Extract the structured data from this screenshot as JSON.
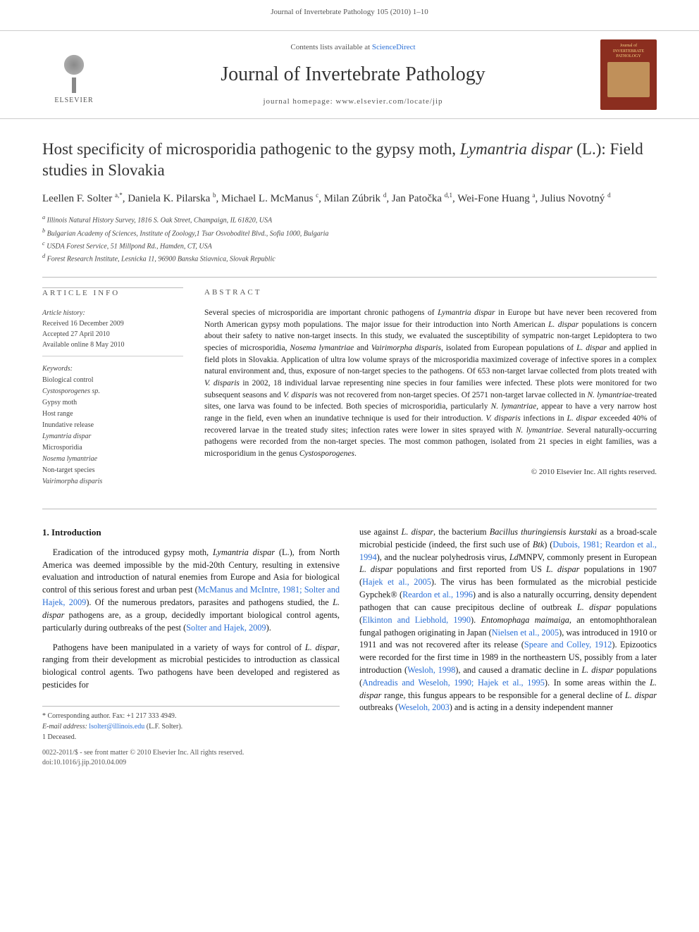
{
  "running_head": "Journal of Invertebrate Pathology 105 (2010) 1–10",
  "masthead": {
    "publisher_label": "ELSEVIER",
    "contents_prefix": "Contents lists available at ",
    "contents_link": "ScienceDirect",
    "journal_name": "Journal of Invertebrate Pathology",
    "homepage_line": "journal homepage: www.elsevier.com/locate/jip",
    "cover_title_1": "Journal of",
    "cover_title_2": "INVERTEBRATE",
    "cover_title_3": "PATHOLOGY"
  },
  "title_part1": "Host specificity of microsporidia pathogenic to the gypsy moth, ",
  "title_italic": "Lymantria dispar",
  "title_part2": " (L.): Field studies in Slovakia",
  "authors_html": "Leellen F. Solter <sup>a,*</sup>, Daniela K. Pilarska <sup>b</sup>, Michael L. McManus <sup>c</sup>, Milan Zúbrik <sup>d</sup>, Jan Patočka <sup>d,1</sup>, Wei-Fone Huang <sup>a</sup>, Julius Novotný <sup>d</sup>",
  "affiliations": [
    "a Illinois Natural History Survey, 1816 S. Oak Street, Champaign, IL 61820, USA",
    "b Bulgarian Academy of Sciences, Institute of Zoology,1 Tsar Osvoboditel Blvd., Sofia 1000, Bulgaria",
    "c USDA Forest Service, 51 Millpond Rd., Hamden, CT, USA",
    "d Forest Research Institute, Lesnicka 11, 96900 Banska Stiavnica, Slovak Republic"
  ],
  "info": {
    "section_a": "ARTICLE INFO",
    "history_label": "Article history:",
    "received": "Received 16 December 2009",
    "accepted": "Accepted 27 April 2010",
    "online": "Available online 8 May 2010",
    "keywords_label": "Keywords:",
    "keywords": [
      {
        "t": "Biological control",
        "i": false
      },
      {
        "t": "Cystosporogenes sp.",
        "i": true
      },
      {
        "t": "Gypsy moth",
        "i": false
      },
      {
        "t": "Host range",
        "i": false
      },
      {
        "t": "Inundative release",
        "i": false
      },
      {
        "t": "Lymantria dispar",
        "i": true
      },
      {
        "t": "Microsporidia",
        "i": false
      },
      {
        "t": "Nosema lymantriae",
        "i": true
      },
      {
        "t": "Non-target species",
        "i": false
      },
      {
        "t": "Vairimorpha disparis",
        "i": true
      }
    ]
  },
  "abstract": {
    "section_a": "ABSTRACT",
    "text": "Several species of microsporidia are important chronic pathogens of Lymantria dispar in Europe but have never been recovered from North American gypsy moth populations. The major issue for their introduction into North American L. dispar populations is concern about their safety to native non-target insects. In this study, we evaluated the susceptibility of sympatric non-target Lepidoptera to two species of microsporidia, Nosema lymantriae and Vairimorpha disparis, isolated from European populations of L. dispar and applied in field plots in Slovakia. Application of ultra low volume sprays of the microsporidia maximized coverage of infective spores in a complex natural environment and, thus, exposure of non-target species to the pathogens. Of 653 non-target larvae collected from plots treated with V. disparis in 2002, 18 individual larvae representing nine species in four families were infected. These plots were monitored for two subsequent seasons and V. disparis was not recovered from non-target species. Of 2571 non-target larvae collected in N. lymantriae-treated sites, one larva was found to be infected. Both species of microsporidia, particularly N. lymantriae, appear to have a very narrow host range in the field, even when an inundative technique is used for their introduction. V. disparis infections in L. dispar exceeded 40% of recovered larvae in the treated study sites; infection rates were lower in sites sprayed with N. lymantriae. Several naturally-occurring pathogens were recorded from the non-target species. The most common pathogen, isolated from 21 species in eight families, was a microsporidium in the genus Cystosporogenes.",
    "copyright": "© 2010 Elsevier Inc. All rights reserved."
  },
  "intro": {
    "heading": "1. Introduction",
    "col1_p1": "Eradication of the introduced gypsy moth, Lymantria dispar (L.), from North America was deemed impossible by the mid-20th Century, resulting in extensive evaluation and introduction of natural enemies from Europe and Asia for biological control of this serious forest and urban pest (McManus and McIntre, 1981; Solter and Hajek, 2009). Of the numerous predators, parasites and pathogens studied, the L. dispar pathogens are, as a group, decidedly important biological control agents, particularly during outbreaks of the pest (Solter and Hajek, 2009).",
    "col1_p2": "Pathogens have been manipulated in a variety of ways for control of L. dispar, ranging from their development as microbial pesticides to introduction as classical biological control agents. Two pathogens have been developed and registered as pesticides for",
    "col2_p1": "use against L. dispar, the bacterium Bacillus thuringiensis kurstaki as a broad-scale microbial pesticide (indeed, the first such use of Btk) (Dubois, 1981; Reardon et al., 1994), and the nuclear polyhedrosis virus, LdMNPV, commonly present in European L. dispar populations and first reported from US L. dispar populations in 1907 (Hajek et al., 2005). The virus has been formulated as the microbial pesticide Gypchek® (Reardon et al., 1996) and is also a naturally occurring, density dependent pathogen that can cause precipitous decline of outbreak L. dispar populations (Elkinton and Liebhold, 1990). Entomophaga maimaiga, an entomophthoralean fungal pathogen originating in Japan (Nielsen et al., 2005), was introduced in 1910 or 1911 and was not recovered after its release (Speare and Colley, 1912). Epizootics were recorded for the first time in 1989 in the northeastern US, possibly from a later introduction (Wesloh, 1998), and caused a dramatic decline in L. dispar populations (Andreadis and Weseloh, 1990; Hajek et al., 1995). In some areas within the L. dispar range, this fungus appears to be responsible for a general decline of L. dispar outbreaks (Weseloh, 2003) and is acting in a density independent manner"
  },
  "footnotes": {
    "corr": "* Corresponding author. Fax: +1 217 333 4949.",
    "email_label": "E-mail address: ",
    "email": "lsolter@illinois.edu",
    "email_who": " (L.F. Solter).",
    "deceased": "1 Deceased."
  },
  "footer": {
    "line1": "0022-2011/$ - see front matter © 2010 Elsevier Inc. All rights reserved.",
    "line2": "doi:10.1016/j.jip.2010.04.009"
  },
  "refs": {
    "r1": "McManus and McIntre, 1981; Solter and Hajek, 2009",
    "r2": "Solter and Hajek, 2009",
    "r3": "Dubois, 1981; Reardon et al., 1994",
    "r4": "Hajek et al., 2005",
    "r5": "Reardon et al., 1996",
    "r6": "Elkinton and Liebhold, 1990",
    "r7": "Nielsen et al., 2005",
    "r8": "Speare and Colley, 1912",
    "r9": "Wesloh, 1998",
    "r10": "Andreadis and Weseloh, 1990; Hajek et al., 1995",
    "r11": "Weseloh, 2003"
  },
  "colors": {
    "link": "#2a6fd6",
    "text": "#1a1a1a",
    "muted": "#555555",
    "rule": "#bbbbbb",
    "cover_bg": "#8b2e1f",
    "cover_gold": "#f0d080"
  },
  "typography": {
    "body_pt": 12.3,
    "title_pt": 23,
    "journal_pt": 28,
    "small_pt": 10,
    "abstract_pt": 11.5
  }
}
